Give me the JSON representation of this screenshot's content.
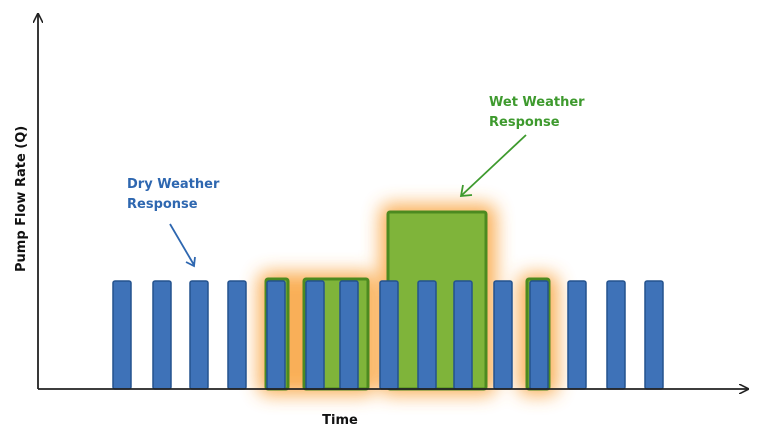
{
  "diagram": {
    "y_axis_label": "Pump Flow Rate (Q)",
    "x_axis_label": "Time",
    "dry_weather": {
      "line1": "Dry Weather",
      "line2": "Response",
      "color": "#2E67B0"
    },
    "wet_weather": {
      "line1": "Wet Weather",
      "line2": "Response",
      "color": "#3E9A2E"
    },
    "colors": {
      "pump_bar": "#3E72B8",
      "pump_bar_edge": "#24528E",
      "wet_fill": "#7FB43A",
      "wet_edge": "#4C8A20",
      "glow": "#F9A23A",
      "axis": "#222222"
    }
  }
}
